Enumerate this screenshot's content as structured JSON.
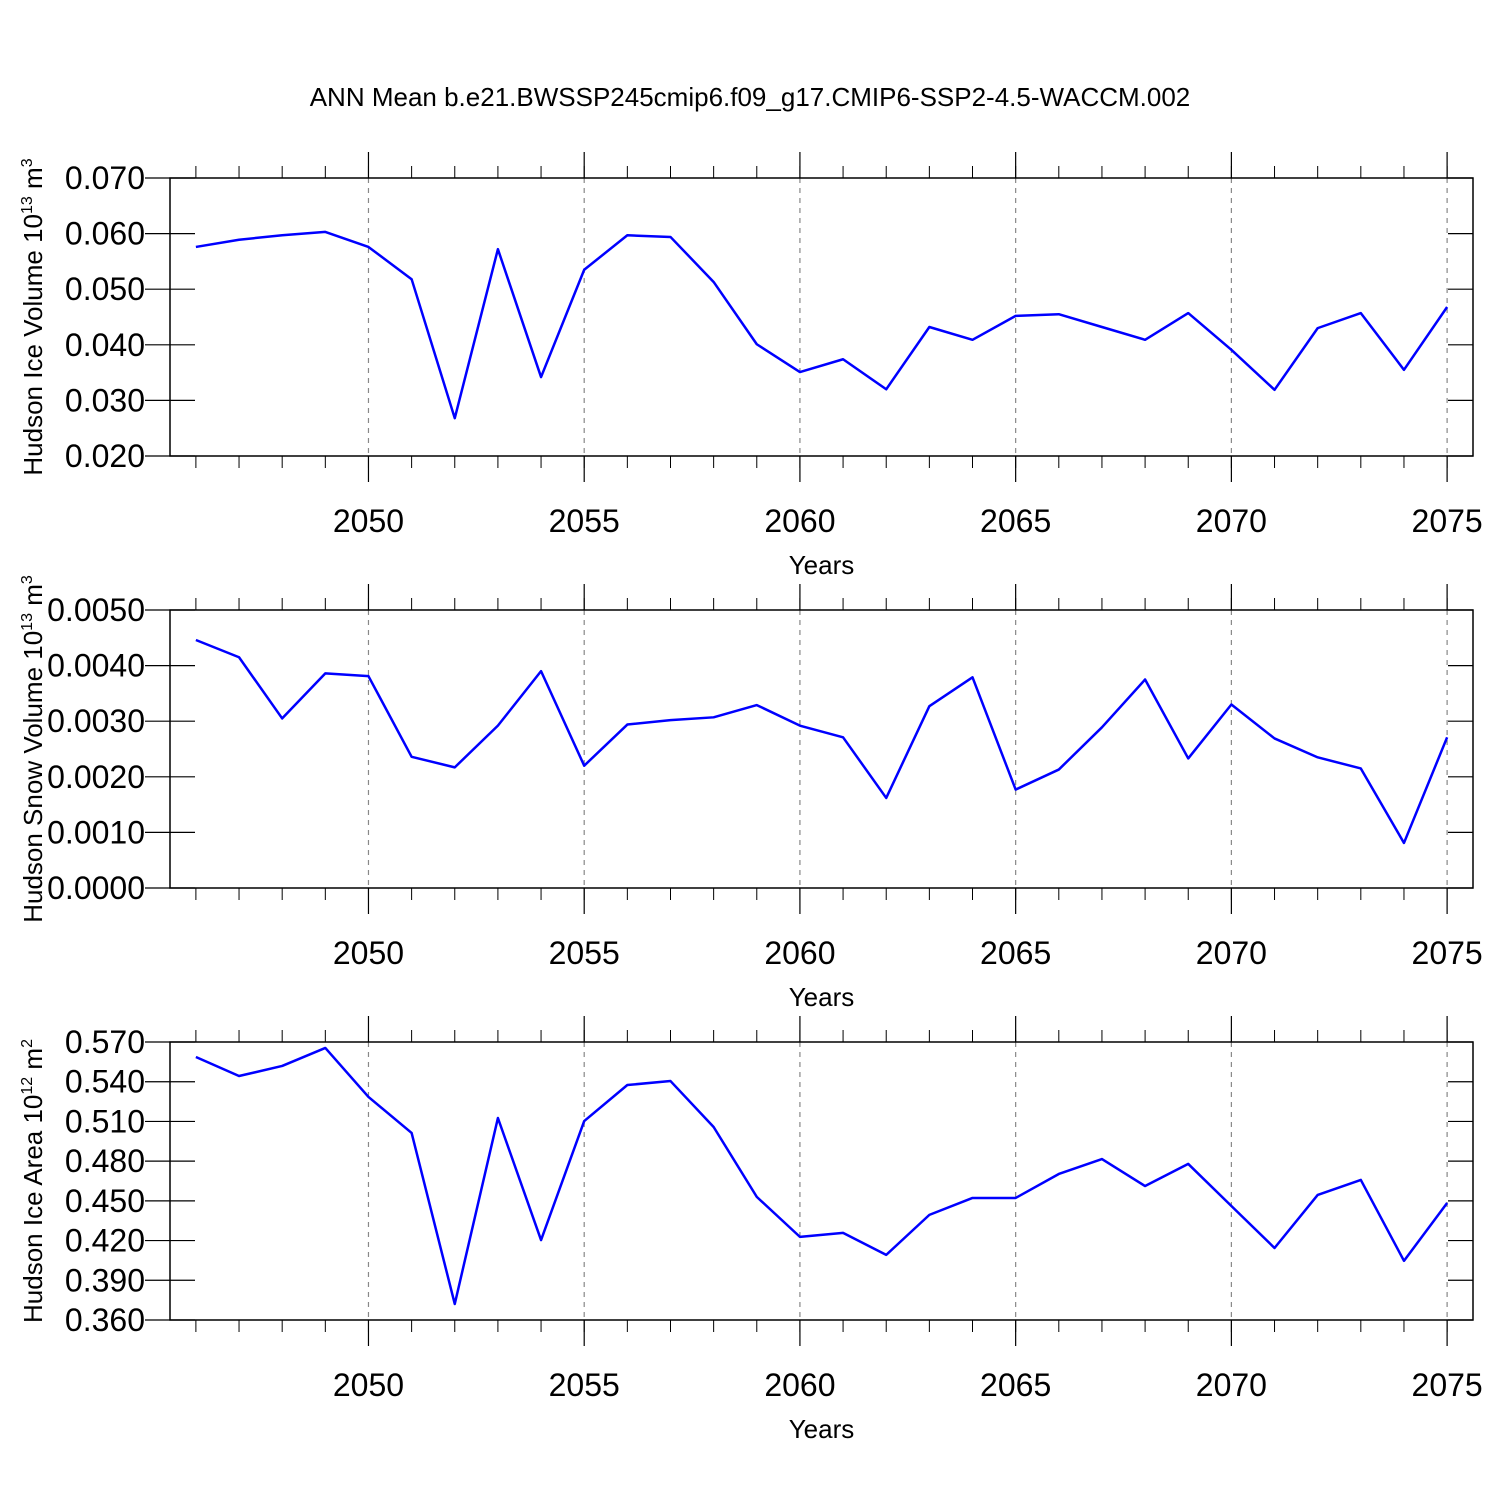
{
  "chart_data": [
    {
      "type": "line",
      "title": "ANN Mean b.e21.BWSSP245cmip6.f09_g17.CMIP6-SSP2-4.5-WACCM.002",
      "ylabel": {
        "text": "Hudson Ice Volume 10",
        "exponent": "13",
        "unit": " m",
        "unit_exponent": "3"
      },
      "xlabel": "Years",
      "x": [
        2046,
        2047,
        2048,
        2049,
        2050,
        2051,
        2052,
        2053,
        2054,
        2055,
        2056,
        2057,
        2058,
        2059,
        2060,
        2061,
        2062,
        2063,
        2064,
        2065,
        2066,
        2067,
        2068,
        2069,
        2070,
        2071,
        2072,
        2073,
        2074,
        2075
      ],
      "series": [
        {
          "color": "#0000ff",
          "values": [
            0.0576,
            0.0589,
            0.0597,
            0.0603,
            0.0576,
            0.0518,
            0.0268,
            0.0572,
            0.0342,
            0.0535,
            0.0597,
            0.0594,
            0.0513,
            0.0401,
            0.0351,
            0.0374,
            0.032,
            0.0432,
            0.0409,
            0.0452,
            0.0455,
            0.0432,
            0.0409,
            0.0457,
            0.0391,
            0.0319,
            0.043,
            0.0457,
            0.0355,
            0.0468
          ]
        }
      ],
      "xlim": [
        2045.4,
        2075.6
      ],
      "xticks": [
        2050,
        2055,
        2060,
        2065,
        2070,
        2075
      ],
      "xgrid": true,
      "ylim": [
        0.02,
        0.07
      ],
      "yticks": [
        {
          "value": 0.02,
          "label": "0.020"
        },
        {
          "value": 0.03,
          "label": "0.030"
        },
        {
          "value": 0.04,
          "label": "0.040"
        },
        {
          "value": 0.05,
          "label": "0.050"
        },
        {
          "value": 0.06,
          "label": "0.060"
        },
        {
          "value": 0.07,
          "label": "0.070"
        }
      ]
    },
    {
      "type": "line",
      "ylabel": {
        "text": "Hudson Snow Volume 10",
        "exponent": "13",
        "unit": " m",
        "unit_exponent": "3"
      },
      "xlabel": "Years",
      "x": [
        2046,
        2047,
        2048,
        2049,
        2050,
        2051,
        2052,
        2053,
        2054,
        2055,
        2056,
        2057,
        2058,
        2059,
        2060,
        2061,
        2062,
        2063,
        2064,
        2065,
        2066,
        2067,
        2068,
        2069,
        2070,
        2071,
        2072,
        2073,
        2074,
        2075
      ],
      "series": [
        {
          "color": "#0000ff",
          "values": [
            0.00446,
            0.00415,
            0.00305,
            0.00386,
            0.00381,
            0.00236,
            0.00217,
            0.00292,
            0.0039,
            0.0022,
            0.00294,
            0.00302,
            0.00307,
            0.00329,
            0.00292,
            0.00271,
            0.00162,
            0.00327,
            0.00379,
            0.00177,
            0.00213,
            0.00289,
            0.00375,
            0.00233,
            0.0033,
            0.00269,
            0.00235,
            0.00215,
            0.00081,
            0.00271
          ]
        }
      ],
      "xlim": [
        2045.4,
        2075.6
      ],
      "xticks": [
        2050,
        2055,
        2060,
        2065,
        2070,
        2075
      ],
      "xgrid": true,
      "ylim": [
        0.0,
        0.005
      ],
      "yticks": [
        {
          "value": 0,
          "label": "0.0000"
        },
        {
          "value": 0.001,
          "label": "0.0010"
        },
        {
          "value": 0.002,
          "label": "0.0020"
        },
        {
          "value": 0.003,
          "label": "0.0030"
        },
        {
          "value": 0.004,
          "label": "0.0040"
        },
        {
          "value": 0.005,
          "label": "0.0050"
        }
      ]
    },
    {
      "type": "line",
      "ylabel": {
        "text": "Hudson Ice Area 10",
        "exponent": "12",
        "unit": " m",
        "unit_exponent": "2"
      },
      "xlabel": "Years",
      "x": [
        2046,
        2047,
        2048,
        2049,
        2050,
        2051,
        2052,
        2053,
        2054,
        2055,
        2056,
        2057,
        2058,
        2059,
        2060,
        2061,
        2062,
        2063,
        2064,
        2065,
        2066,
        2067,
        2068,
        2069,
        2070,
        2071,
        2072,
        2073,
        2074,
        2075
      ],
      "series": [
        {
          "color": "#0000ff",
          "values": [
            0.5587,
            0.5443,
            0.5519,
            0.5655,
            0.5285,
            0.5013,
            0.3721,
            0.5126,
            0.4204,
            0.5103,
            0.5375,
            0.5405,
            0.5058,
            0.453,
            0.4228,
            0.4258,
            0.4092,
            0.4394,
            0.4522,
            0.4522,
            0.4703,
            0.4816,
            0.4612,
            0.4779,
            0.4461,
            0.4144,
            0.4545,
            0.4658,
            0.4047,
            0.4484
          ]
        }
      ],
      "xlim": [
        2045.4,
        2075.6
      ],
      "xticks": [
        2050,
        2055,
        2060,
        2065,
        2070,
        2075
      ],
      "xgrid": true,
      "ylim": [
        0.36,
        0.57
      ],
      "yticks": [
        {
          "value": 0.36,
          "label": "0.360"
        },
        {
          "value": 0.39,
          "label": "0.390"
        },
        {
          "value": 0.42,
          "label": "0.420"
        },
        {
          "value": 0.45,
          "label": "0.450"
        },
        {
          "value": 0.48,
          "label": "0.480"
        },
        {
          "value": 0.51,
          "label": "0.510"
        },
        {
          "value": 0.54,
          "label": "0.540"
        },
        {
          "value": 0.57,
          "label": "0.570"
        }
      ]
    }
  ]
}
